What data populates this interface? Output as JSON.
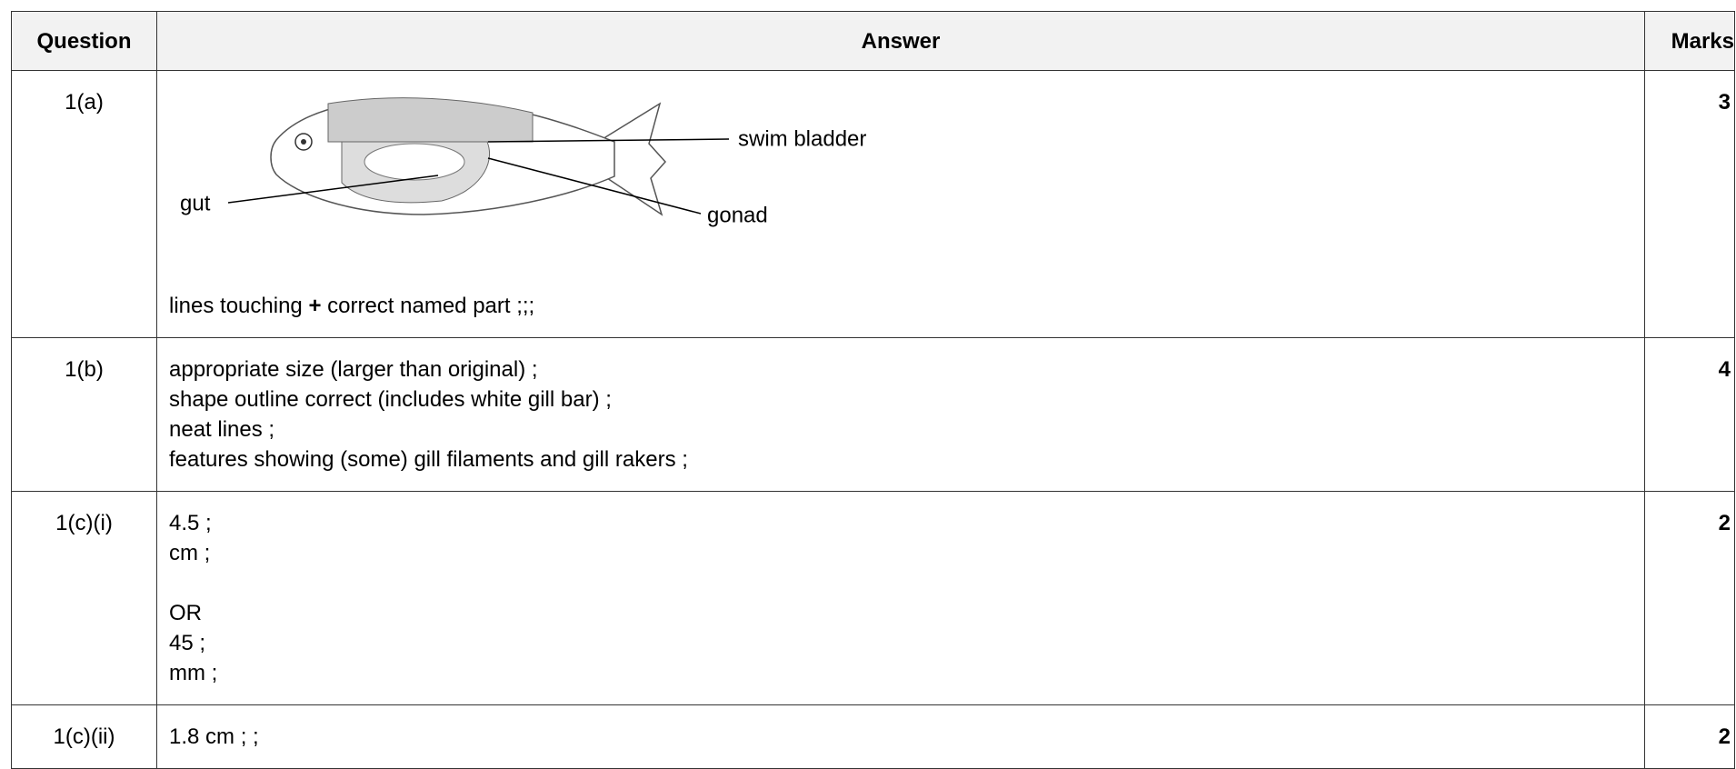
{
  "table": {
    "header": [
      "Question",
      "Answer",
      "Marks"
    ],
    "rows": [
      {
        "question": "1(a)",
        "diagram": {
          "labels": [
            "swim bladder",
            "gut",
            "gonad"
          ]
        },
        "answer": [
          [
            "lines touching ",
            "+",
            " correct named part ;;;"
          ]
        ],
        "marks": 3
      },
      {
        "question": "1(b)",
        "answer": [
          [
            "appropriate size (larger than original) ;",
            "shape outline correct (includes white gill bar) ;",
            "neat lines ;",
            "features showing (some) gill filaments and gill rakers ;"
          ]
        ],
        "marks": 4
      },
      {
        "question": "1(c)(i)",
        "answer": [
          [
            "4.5 ;",
            "cm ;"
          ],
          [
            "OR",
            "45 ;",
            "mm ;"
          ]
        ],
        "marks": 2
      },
      {
        "question": "1(c)(ii)",
        "answer": [
          [
            "1.8 cm ; ;"
          ]
        ],
        "marks": 2
      }
    ]
  }
}
